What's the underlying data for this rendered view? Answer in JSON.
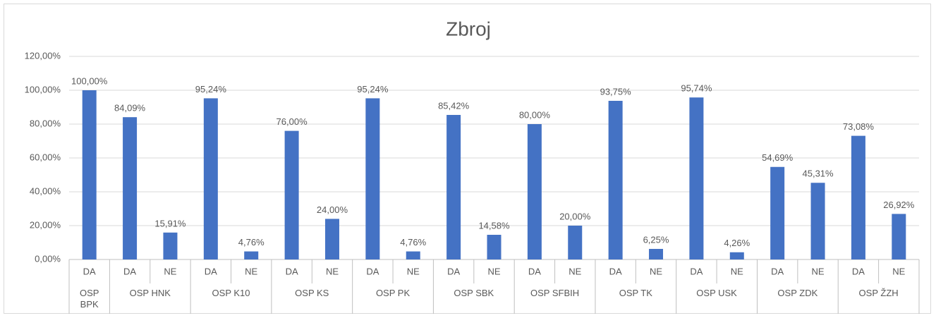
{
  "chart_data": {
    "type": "bar",
    "title": "Zbroj",
    "color": "#4472c4",
    "ylim": [
      0,
      120
    ],
    "yticks": [
      {
        "value": 0,
        "label": "0,00%"
      },
      {
        "value": 20,
        "label": "20,00%"
      },
      {
        "value": 40,
        "label": "40,00%"
      },
      {
        "value": 60,
        "label": "60,00%"
      },
      {
        "value": 80,
        "label": "80,00%"
      },
      {
        "value": 100,
        "label": "100,00%"
      },
      {
        "value": 120,
        "label": "120,00%"
      }
    ],
    "grid": true,
    "groups": [
      {
        "name": "OSP BPK",
        "categories": [
          "DA"
        ],
        "values": [
          100
        ],
        "value_labels": [
          "100,00%"
        ]
      },
      {
        "name": "OSP HNK",
        "categories": [
          "DA",
          "NE"
        ],
        "values": [
          84.09,
          15.91
        ],
        "value_labels": [
          "84,09%",
          "15,91%"
        ]
      },
      {
        "name": "OSP K10",
        "categories": [
          "DA",
          "NE"
        ],
        "values": [
          95.24,
          4.76
        ],
        "value_labels": [
          "95,24%",
          "4,76%"
        ]
      },
      {
        "name": "OSP KS",
        "categories": [
          "DA",
          "NE"
        ],
        "values": [
          76,
          24
        ],
        "value_labels": [
          "76,00%",
          "24,00%"
        ]
      },
      {
        "name": "OSP PK",
        "categories": [
          "DA",
          "NE"
        ],
        "values": [
          95.24,
          4.76
        ],
        "value_labels": [
          "95,24%",
          "4,76%"
        ]
      },
      {
        "name": "OSP SBK",
        "categories": [
          "DA",
          "NE"
        ],
        "values": [
          85.42,
          14.58
        ],
        "value_labels": [
          "85,42%",
          "14,58%"
        ]
      },
      {
        "name": "OSP SFBIH",
        "categories": [
          "DA",
          "NE"
        ],
        "values": [
          80,
          20
        ],
        "value_labels": [
          "80,00%",
          "20,00%"
        ]
      },
      {
        "name": "OSP TK",
        "categories": [
          "DA",
          "NE"
        ],
        "values": [
          93.75,
          6.25
        ],
        "value_labels": [
          "93,75%",
          "6,25%"
        ]
      },
      {
        "name": "OSP USK",
        "categories": [
          "DA",
          "NE"
        ],
        "values": [
          95.74,
          4.26
        ],
        "value_labels": [
          "95,74%",
          "4,26%"
        ]
      },
      {
        "name": "OSP ZDK",
        "categories": [
          "DA",
          "NE"
        ],
        "values": [
          54.69,
          45.31
        ],
        "value_labels": [
          "54,69%",
          "45,31%"
        ]
      },
      {
        "name": "OSP ŽZH",
        "categories": [
          "DA",
          "NE"
        ],
        "values": [
          73.08,
          26.92
        ],
        "value_labels": [
          "73,08%",
          "26,92%"
        ]
      }
    ]
  }
}
